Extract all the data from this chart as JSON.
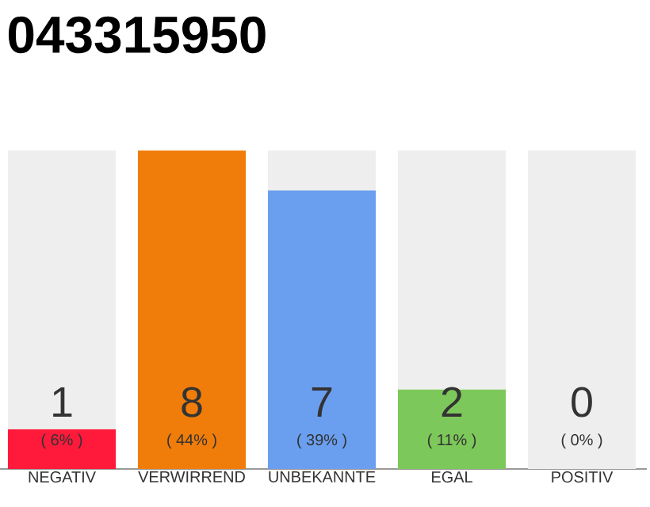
{
  "chart_data": {
    "type": "bar",
    "title": "043315950",
    "categories": [
      "NEGATIV",
      "VERWIRREND",
      "UNBEKANNTE",
      "EGAL",
      "POSITIV"
    ],
    "stacked": true,
    "series": [
      {
        "colors": [
          "#ff1a3c",
          "#f07d0a",
          "#6a9ff0",
          "#7dc85a",
          "#efefef"
        ],
        "values": [
          1,
          8,
          7,
          2,
          0
        ],
        "value_labels": [
          "1",
          "8",
          "7",
          "2",
          null
        ]
      },
      {
        "color": "#eeeeee",
        "values": [
          7,
          0,
          1,
          6,
          8
        ]
      }
    ],
    "ylim": [
      0,
      8
    ],
    "tick_labels": "x",
    "annotations": [
      "( 6% )",
      "( 44% )",
      "( 39% )",
      "( 11% )",
      "( 0% )",
      {
        "text": "0",
        "x": "POSITIV",
        "y": 0
      }
    ]
  }
}
